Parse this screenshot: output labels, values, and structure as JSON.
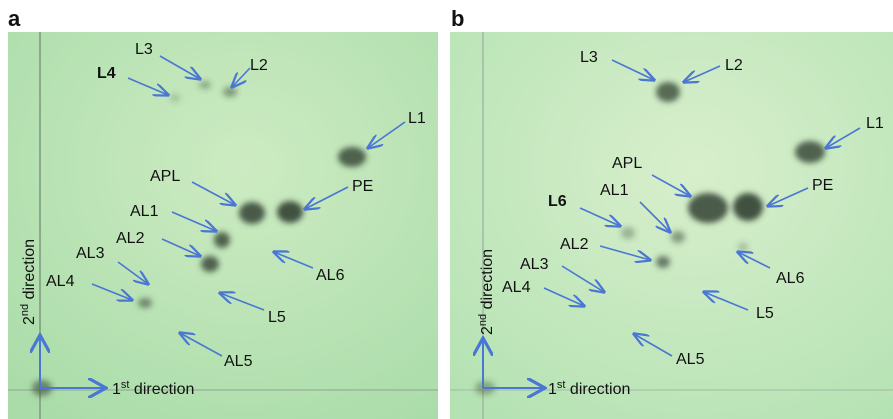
{
  "panels": [
    {
      "letter": "a",
      "labels": [
        "L3",
        "L4",
        "L2",
        "L1",
        "APL",
        "PE",
        "AL1",
        "AL2",
        "AL6",
        "AL3",
        "AL4",
        "L5",
        "AL5"
      ],
      "x_axis": {
        "number": "1",
        "suffix": "st",
        "word": "direction"
      },
      "y_axis": {
        "number": "2",
        "suffix": "nd",
        "word": "direction"
      }
    },
    {
      "letter": "b",
      "labels": [
        "L3",
        "L2",
        "L1",
        "APL",
        "PE",
        "L6",
        "AL1",
        "AL2",
        "AL6",
        "AL3",
        "AL4",
        "L5",
        "AL5"
      ],
      "x_axis": {
        "number": "1",
        "suffix": "st",
        "word": "direction"
      },
      "y_axis": {
        "number": "2",
        "suffix": "nd",
        "word": "direction"
      }
    }
  ]
}
